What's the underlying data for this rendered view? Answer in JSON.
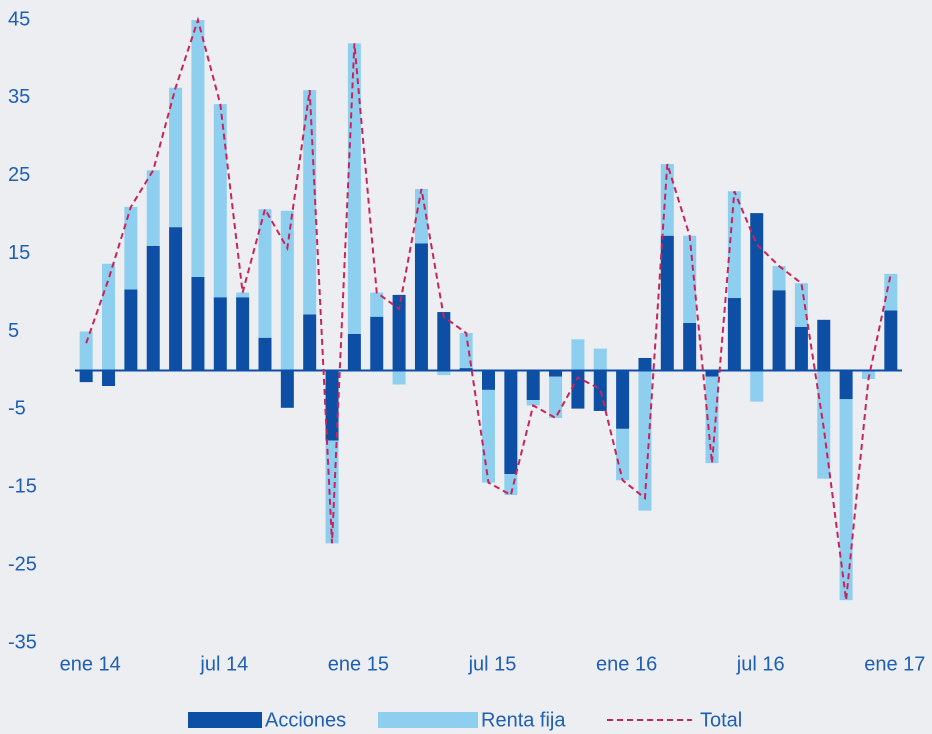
{
  "chart_data": {
    "type": "stacked-bar-line",
    "categories": [
      "ene 14",
      null,
      null,
      null,
      null,
      null,
      "jul 14",
      null,
      null,
      null,
      null,
      null,
      "ene 15",
      null,
      null,
      null,
      null,
      null,
      "jul 15",
      null,
      null,
      null,
      null,
      null,
      "ene 16",
      null,
      null,
      null,
      null,
      null,
      "jul 16",
      null,
      null,
      null,
      null,
      null,
      "ene 17"
    ],
    "series": [
      {
        "name": "Acciones",
        "color": "#0e4fa6",
        "kind": "bar",
        "values": [
          -1.5,
          -2,
          10.4,
          16,
          18.4,
          12,
          9.4,
          9.4,
          4.2,
          -4.8,
          7.2,
          -9,
          4.7,
          6.9,
          9.7,
          16.3,
          7.5,
          0.3,
          -2.5,
          -13.3,
          -3.8,
          -0.8,
          -4.9,
          -5.2,
          -7.5,
          1.6,
          17.3,
          6.1,
          -0.8,
          9.3,
          20.2,
          10.3,
          5.6,
          6.5,
          -3.7,
          0,
          7.7
        ]
      },
      {
        "name": "Renta fija",
        "color": "#8ecff0",
        "kind": "bar",
        "values": [
          5,
          13.7,
          10.6,
          9.7,
          17.9,
          33,
          24.8,
          0.6,
          16.5,
          20.5,
          28.8,
          -13.2,
          37.3,
          3.1,
          -1.8,
          7,
          -0.6,
          4.5,
          -11.9,
          -2.7,
          -0.7,
          -5.3,
          4,
          2.8,
          -6.6,
          -18,
          9.2,
          11.2,
          -11.1,
          13.7,
          -4,
          3.1,
          5.6,
          -13.9,
          -25.8,
          -1.1,
          4.7
        ]
      },
      {
        "name": "Total",
        "color": "#c8245a",
        "kind": "line",
        "values": [
          3.5,
          11.7,
          21,
          25.7,
          36.3,
          45,
          34.2,
          10,
          20.7,
          15.7,
          36,
          -22.2,
          42,
          10,
          7.9,
          23.3,
          6.9,
          4.8,
          -14.4,
          -16,
          -4.5,
          -6.1,
          -0.9,
          -2.4,
          -14.1,
          -16.4,
          26.5,
          17.3,
          -11.9,
          23,
          16.2,
          13.4,
          11.2,
          -7.4,
          -29.5,
          -1.1,
          12.4
        ]
      }
    ],
    "ylim": [
      -35,
      45
    ],
    "yticks": [
      45,
      35,
      25,
      15,
      5,
      -5,
      -15,
      -25,
      -35
    ]
  }
}
